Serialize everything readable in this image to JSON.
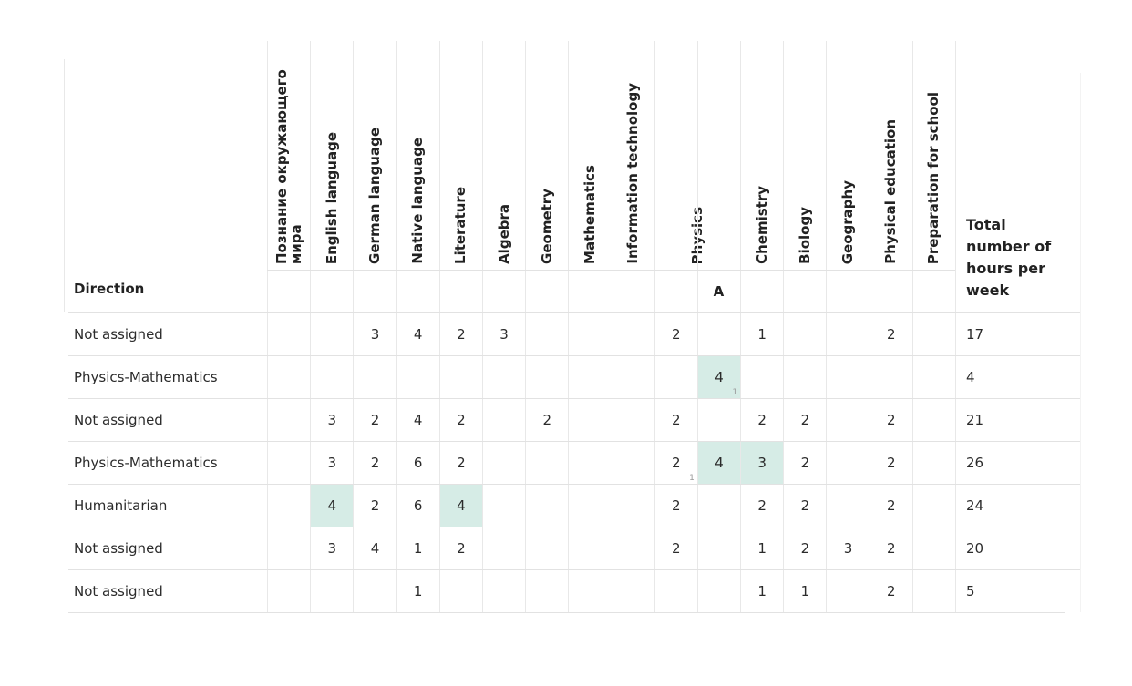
{
  "table": {
    "header": {
      "direction": "Direction",
      "subjects": [
        "Познание окружающего мира",
        "English language",
        "German language",
        "Native language",
        "Literature",
        "Algebra",
        "Geometry",
        "Mathematics",
        "Information technology",
        {
          "label": "Physics",
          "subcolumns": [
            null,
            "A"
          ]
        },
        "Chemistry",
        "Biology",
        "Geography",
        "Physical education",
        "Preparation for school"
      ],
      "total": "Total number of hours per week"
    },
    "rows": [
      {
        "direction": "Not assigned",
        "hours": [
          null,
          null,
          3,
          4,
          2,
          3,
          null,
          null,
          null,
          2,
          null,
          1,
          null,
          null,
          2,
          null
        ],
        "total": 17
      },
      {
        "direction": "Physics-Mathematics",
        "hours": [
          null,
          null,
          null,
          null,
          null,
          null,
          null,
          null,
          null,
          null,
          {
            "value": 4,
            "note": 1,
            "highlight": true
          },
          null,
          null,
          null,
          null,
          null
        ],
        "total": 4
      },
      {
        "direction": "Not assigned",
        "hours": [
          null,
          3,
          2,
          4,
          2,
          null,
          2,
          null,
          null,
          2,
          null,
          2,
          2,
          null,
          2,
          null
        ],
        "total": 21
      },
      {
        "direction": "Physics-Mathematics",
        "hours": [
          null,
          3,
          2,
          6,
          2,
          null,
          null,
          null,
          null,
          {
            "value": 2,
            "note": 1
          },
          {
            "value": 4,
            "highlight": true
          },
          {
            "value": 3,
            "highlight": true
          },
          2,
          null,
          2,
          null
        ],
        "total": 26
      },
      {
        "direction": "Humanitarian",
        "hours": [
          null,
          {
            "value": 4,
            "highlight": true
          },
          2,
          6,
          {
            "value": 4,
            "highlight": true
          },
          null,
          null,
          null,
          null,
          2,
          null,
          2,
          2,
          null,
          2,
          null
        ],
        "total": 24
      },
      {
        "direction": "Not assigned",
        "hours": [
          null,
          3,
          4,
          1,
          2,
          null,
          null,
          null,
          null,
          2,
          null,
          1,
          2,
          3,
          2,
          null
        ],
        "total": 20
      },
      {
        "direction": "Not assigned",
        "hours": [
          null,
          null,
          null,
          1,
          null,
          null,
          null,
          null,
          null,
          null,
          null,
          1,
          1,
          null,
          2,
          null
        ],
        "total": 5
      }
    ]
  }
}
